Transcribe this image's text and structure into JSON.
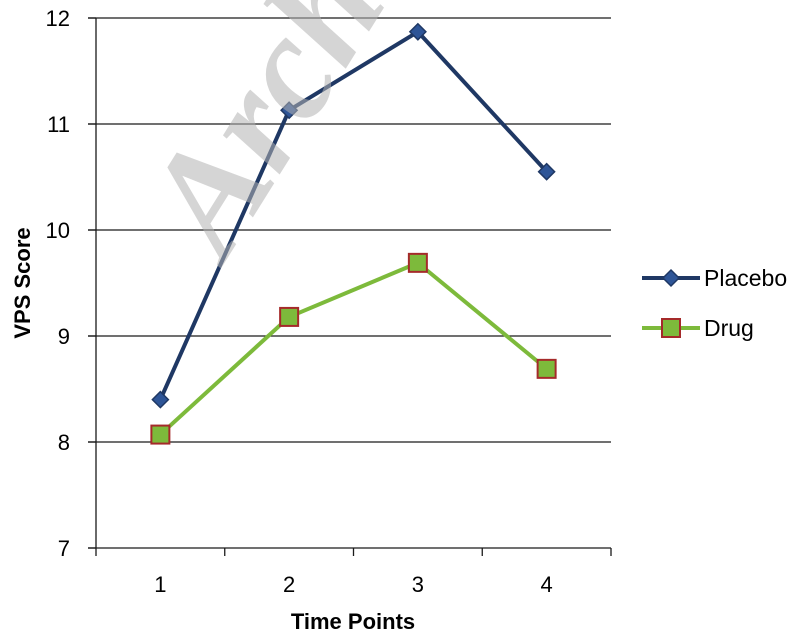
{
  "watermark": "Arch",
  "chart_data": {
    "type": "line",
    "title": "",
    "xlabel": "Time Points",
    "ylabel": "VPS Score",
    "categories": [
      "1",
      "2",
      "3",
      "4"
    ],
    "ylim": [
      7,
      12
    ],
    "yticks": [
      "7",
      "8",
      "9",
      "10",
      "11",
      "12"
    ],
    "grid": "horizontal",
    "legend_position": "right",
    "series": [
      {
        "name": "Placebo",
        "values": [
          8.4,
          11.13,
          11.87,
          10.55
        ],
        "color": "#1f3864",
        "marker": "diamond"
      },
      {
        "name": "Drug",
        "values": [
          8.07,
          9.18,
          9.69,
          8.69
        ],
        "color": "#7dba3b",
        "marker": "square",
        "marker_edge": "#a52a2a"
      }
    ]
  }
}
